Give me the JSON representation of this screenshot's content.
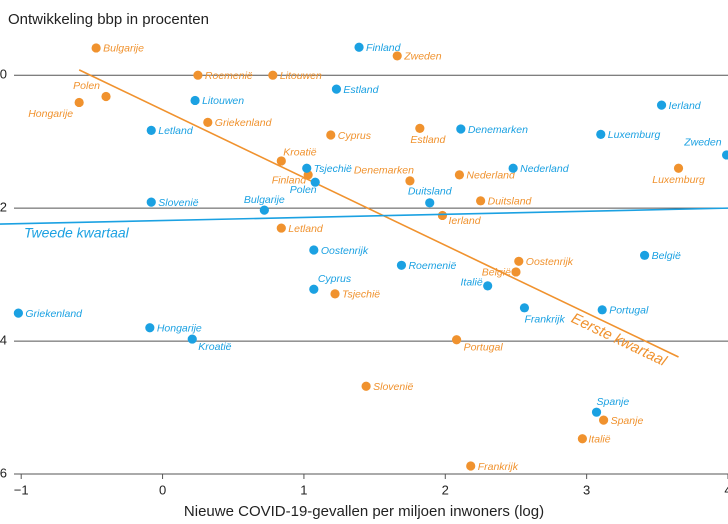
{
  "chart_data": {
    "type": "scatter",
    "title": "Ontwikkeling bbp in procenten",
    "x_label": "Nieuwe COVID-19-gevallen per miljoen inwoners (log)",
    "xlim": [
      -1.15,
      4.0
    ],
    "ylim": [
      -6,
      0.68
    ],
    "xticks": [
      {
        "value": -1,
        "label": "−1"
      },
      0,
      1,
      2,
      3,
      4
    ],
    "yticks": [
      0,
      {
        "value": -2,
        "label": "−2"
      },
      {
        "value": -4,
        "label": "−4"
      },
      {
        "value": -6,
        "label": "−6"
      }
    ],
    "grid": true,
    "series": [
      {
        "name": "Eerste kwartaal",
        "color": "#f0922e",
        "labels": [
          "Bulgarije",
          "Roemenië",
          "Litouwen",
          "Zweden",
          "Polen",
          "Hongarije",
          "Griekenland",
          "Cyprus",
          "Estland",
          "Kroatië",
          "Finland",
          "Denemarken",
          "Nederland",
          "Luxemburg",
          "Ierland",
          "Duitsland",
          "Letland",
          "Oostenrijk",
          "Tsjechië",
          "België",
          "Portugal",
          "Slovenië",
          "Spanje",
          "Italië",
          "Frankrijk"
        ],
        "x": [
          -0.47,
          0.25,
          0.78,
          1.66,
          -0.4,
          -0.59,
          0.32,
          1.19,
          1.82,
          0.84,
          1.03,
          1.75,
          2.1,
          3.65,
          1.98,
          2.25,
          0.84,
          2.52,
          1.22,
          2.5,
          2.08,
          1.44,
          3.12,
          2.97,
          2.18
        ],
        "values": [
          0.41,
          0.0,
          0.0,
          0.29,
          -0.32,
          -0.41,
          -0.71,
          -0.9,
          -0.8,
          -1.29,
          -1.5,
          -1.59,
          -1.5,
          -1.4,
          -2.11,
          -1.89,
          -2.3,
          -2.8,
          -3.29,
          -2.96,
          -3.98,
          -4.68,
          -5.19,
          -5.47,
          -5.88
        ],
        "trend_x": [
          -0.59,
          3.65
        ],
        "trend_y": [
          0.08,
          -4.24
        ]
      },
      {
        "name": "Tweede kwartaal",
        "color": "#1ba1e2",
        "labels": [
          "Finland",
          "Estland",
          "Litouwen",
          "Letland",
          "Ierland",
          "Denemarken",
          "Luxemburg",
          "Zweden",
          "Tsjechië",
          "Polen",
          "Nederland",
          "Slovenië",
          "Bulgarije",
          "Duitsland",
          "Oostenrijk",
          "Roemenië",
          "België",
          "Cyprus",
          "Italië",
          "Frankrijk",
          "Portugal",
          "Griekenland",
          "Hongarije",
          "Kroatië",
          "Spanje"
        ],
        "x": [
          1.39,
          1.23,
          0.23,
          -0.08,
          3.53,
          2.11,
          3.1,
          3.99,
          1.02,
          1.08,
          2.48,
          -0.08,
          0.72,
          1.89,
          1.07,
          1.69,
          3.41,
          1.07,
          2.3,
          2.56,
          3.11,
          -1.02,
          -0.09,
          0.21,
          3.07
        ],
        "values": [
          0.42,
          -0.21,
          -0.38,
          -0.83,
          -0.45,
          -0.81,
          -0.89,
          -1.2,
          -1.4,
          -1.61,
          -1.4,
          -1.91,
          -2.03,
          -1.92,
          -2.63,
          -2.86,
          -2.71,
          -3.22,
          -3.17,
          -3.5,
          -3.53,
          -3.58,
          -3.8,
          -3.97,
          -5.07
        ],
        "trend_x": [
          -1.15,
          4.0
        ],
        "trend_y": [
          -2.24,
          -2.0
        ]
      }
    ]
  }
}
